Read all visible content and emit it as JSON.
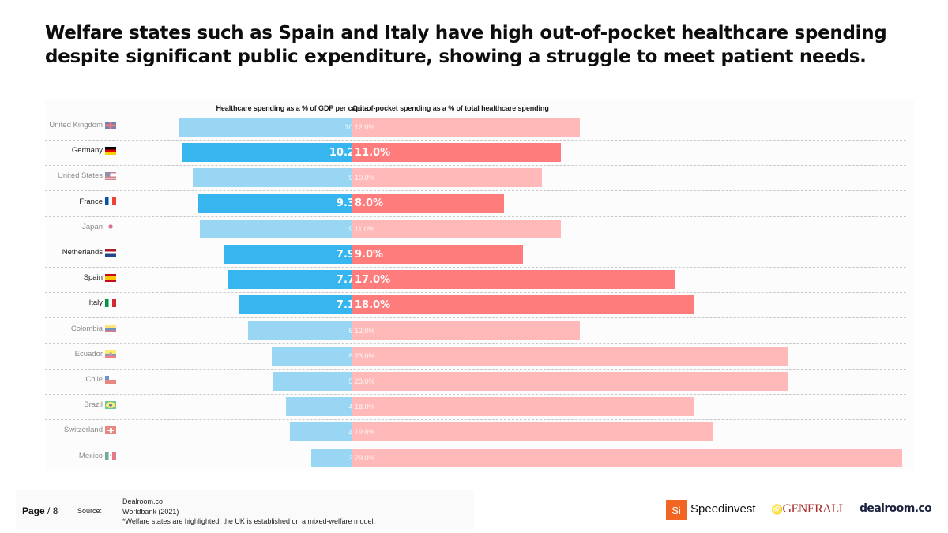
{
  "title": "Welfare states such as Spain and Italy have high out-of-pocket healthcare spending despite significant public expenditure, showing a struggle to meet patient needs.",
  "chart_data": {
    "type": "bar",
    "orientation": "horizontal",
    "title": "Welfare states such as Spain and Italy have high out-of-pocket healthcare spending despite significant public expenditure, showing a struggle to meet patient needs.",
    "categories": [
      "United Kingdom",
      "Germany",
      "United States",
      "France",
      "Japan",
      "Netherlands",
      "Spain",
      "Italy",
      "Colombia",
      "Ecuador",
      "Chile",
      "Brazil",
      "Switzerland",
      "Mexico"
    ],
    "highlighted": [
      false,
      true,
      false,
      true,
      false,
      true,
      true,
      true,
      false,
      false,
      false,
      false,
      false,
      false
    ],
    "series": [
      {
        "name": "Healthcare spending as a % of GDP per capita",
        "values": [
          10.4,
          10.2,
          9.6,
          9.3,
          9.2,
          7.9,
          7.7,
          7.1,
          6.6,
          5.3,
          5.2,
          4.5,
          4.3,
          3.1
        ],
        "labels": [
          "10.4%",
          "10.2%",
          "9.6%",
          "9.3%",
          "9.2%",
          "7.9%",
          "7.7%",
          "7.1%",
          "6.6%",
          "5.3%",
          "5.2%",
          "4.5%",
          "4.3%",
          "3.1%"
        ],
        "direction": "left",
        "color": "#36b5ee",
        "color_dim": "#98d6f4"
      },
      {
        "name": "Out-of-pocket spending as a % of total healthcare spending",
        "values": [
          12.0,
          11.0,
          10.0,
          8.0,
          11.0,
          9.0,
          17.0,
          18.0,
          12.0,
          23.0,
          23.0,
          18.0,
          19.0,
          29.0
        ],
        "labels": [
          "12.0%",
          "11.0%",
          "10.0%",
          "8.0%",
          "11.0%",
          "9.0%",
          "17.0%",
          "18.0%",
          "12.0%",
          "23.0%",
          "23.0%",
          "18.0%",
          "19.0%",
          "29.0%"
        ],
        "direction": "right",
        "color": "#ff7c7c",
        "color_dim": "#ffb9b9"
      }
    ],
    "xlabel": "",
    "ylabel": "",
    "grid": false,
    "legend": "column headers top"
  },
  "flags": [
    "flag-uk",
    "flag-germany",
    "flag-us",
    "flag-france",
    "flag-japan",
    "flag-netherlands",
    "flag-spain",
    "flag-italy",
    "flag-colombia",
    "flag-ecuador",
    "flag-chile",
    "flag-brazil",
    "flag-switzerland",
    "flag-mexico"
  ],
  "footer": {
    "page_word": "Page",
    "page_sep": "/ 8",
    "source_label": "Source:",
    "sources": [
      "Dealroom.co",
      "Worldbank (2021)",
      "*Welfare states are highlighted, the UK is established on a mixed-welfare model."
    ]
  },
  "logos": {
    "speedinvest_mark": "Si",
    "speedinvest": "Speedinvest",
    "generali": "GENERALI",
    "dealroom": "dealroom.co"
  }
}
